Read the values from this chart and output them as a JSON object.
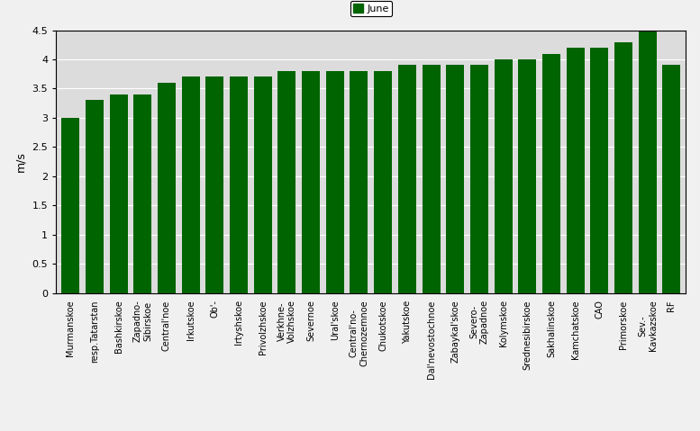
{
  "categories": [
    "Murmanskoe",
    "resp.Tatarstan",
    "Bashkirskoe",
    "Zapadno-\nSibirskoe",
    "Central'noe",
    "Irkutskoe",
    "Ob'-",
    "Irtyshskoe",
    "Privolzhskoe",
    "Verkhne-\nVolzhskoe",
    "Severnoe",
    "Ural'skoe",
    "Central'no-\nChernozemnoe",
    "Chukotskoe",
    "Yakutskoe",
    "Dal'nevostochnoe",
    "Zabaykal'skoe",
    "Severo-\nZapadnoe",
    "Kolymskoe",
    "Srednesibirskoe",
    "Sakhalinskoe",
    "Kamchatskoe",
    "CAO",
    "Primorskoe",
    "Sev.-\nKavkazskoe",
    "RF"
  ],
  "values": [
    3.0,
    3.3,
    3.4,
    3.4,
    3.6,
    3.7,
    3.7,
    3.7,
    3.7,
    3.8,
    3.8,
    3.8,
    3.8,
    3.8,
    3.9,
    3.9,
    3.9,
    3.9,
    4.0,
    4.0,
    4.1,
    4.2,
    4.2,
    4.3,
    4.5,
    3.9
  ],
  "bar_color": "#006400",
  "ylabel": "m/s",
  "ylim": [
    0,
    4.5
  ],
  "yticks": [
    0,
    0.5,
    1.0,
    1.5,
    2.0,
    2.5,
    3.0,
    3.5,
    4.0,
    4.5
  ],
  "ytick_labels": [
    "0",
    "0.5",
    "1",
    "1.5",
    "2",
    "2.5",
    "3",
    "3.5",
    "4",
    "4.5"
  ],
  "legend_label": "June",
  "legend_color": "#006400",
  "fig_bg_color": "#f0f0f0",
  "plot_bg_color": "#dcdcdc"
}
